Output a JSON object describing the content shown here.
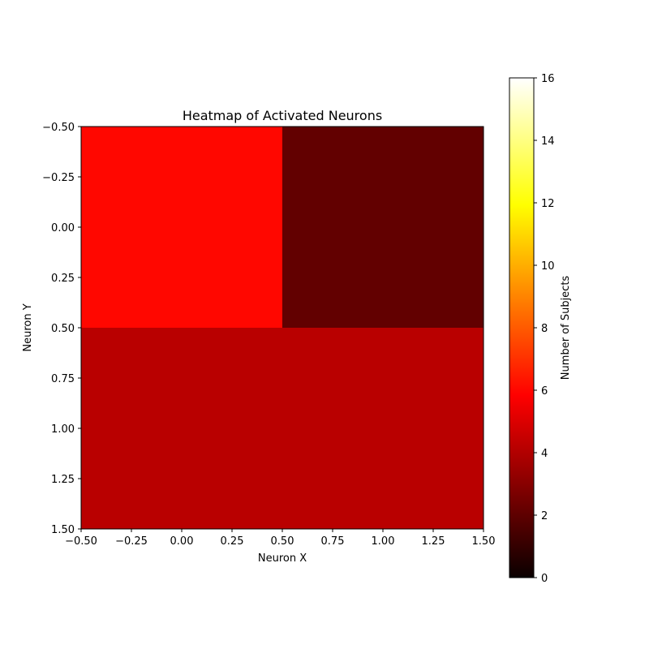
{
  "chart_data": {
    "type": "heatmap",
    "title": "Heatmap of Activated Neurons",
    "xlabel": "Neuron X",
    "ylabel": "Neuron Y",
    "xlim": [
      -0.5,
      1.5
    ],
    "ylim": [
      -0.5,
      1.5
    ],
    "y_inverted": true,
    "x_ticks": [
      "−0.50",
      "−0.25",
      "0.00",
      "0.25",
      "0.50",
      "0.75",
      "1.00",
      "1.25",
      "1.50"
    ],
    "y_ticks": [
      "−0.50",
      "−0.25",
      "0.00",
      "0.25",
      "0.50",
      "0.75",
      "1.00",
      "1.25",
      "1.50"
    ],
    "x_categories": [
      0,
      1
    ],
    "y_categories": [
      0,
      1
    ],
    "values": [
      [
        6,
        2
      ],
      [
        4,
        4
      ]
    ],
    "colormap": "hot",
    "colorbar": {
      "label": "Number of Subjects",
      "vmin": 0,
      "vmax": 16,
      "ticks": [
        "0",
        "2",
        "4",
        "6",
        "8",
        "10",
        "12",
        "14",
        "16"
      ]
    },
    "grid": false
  }
}
